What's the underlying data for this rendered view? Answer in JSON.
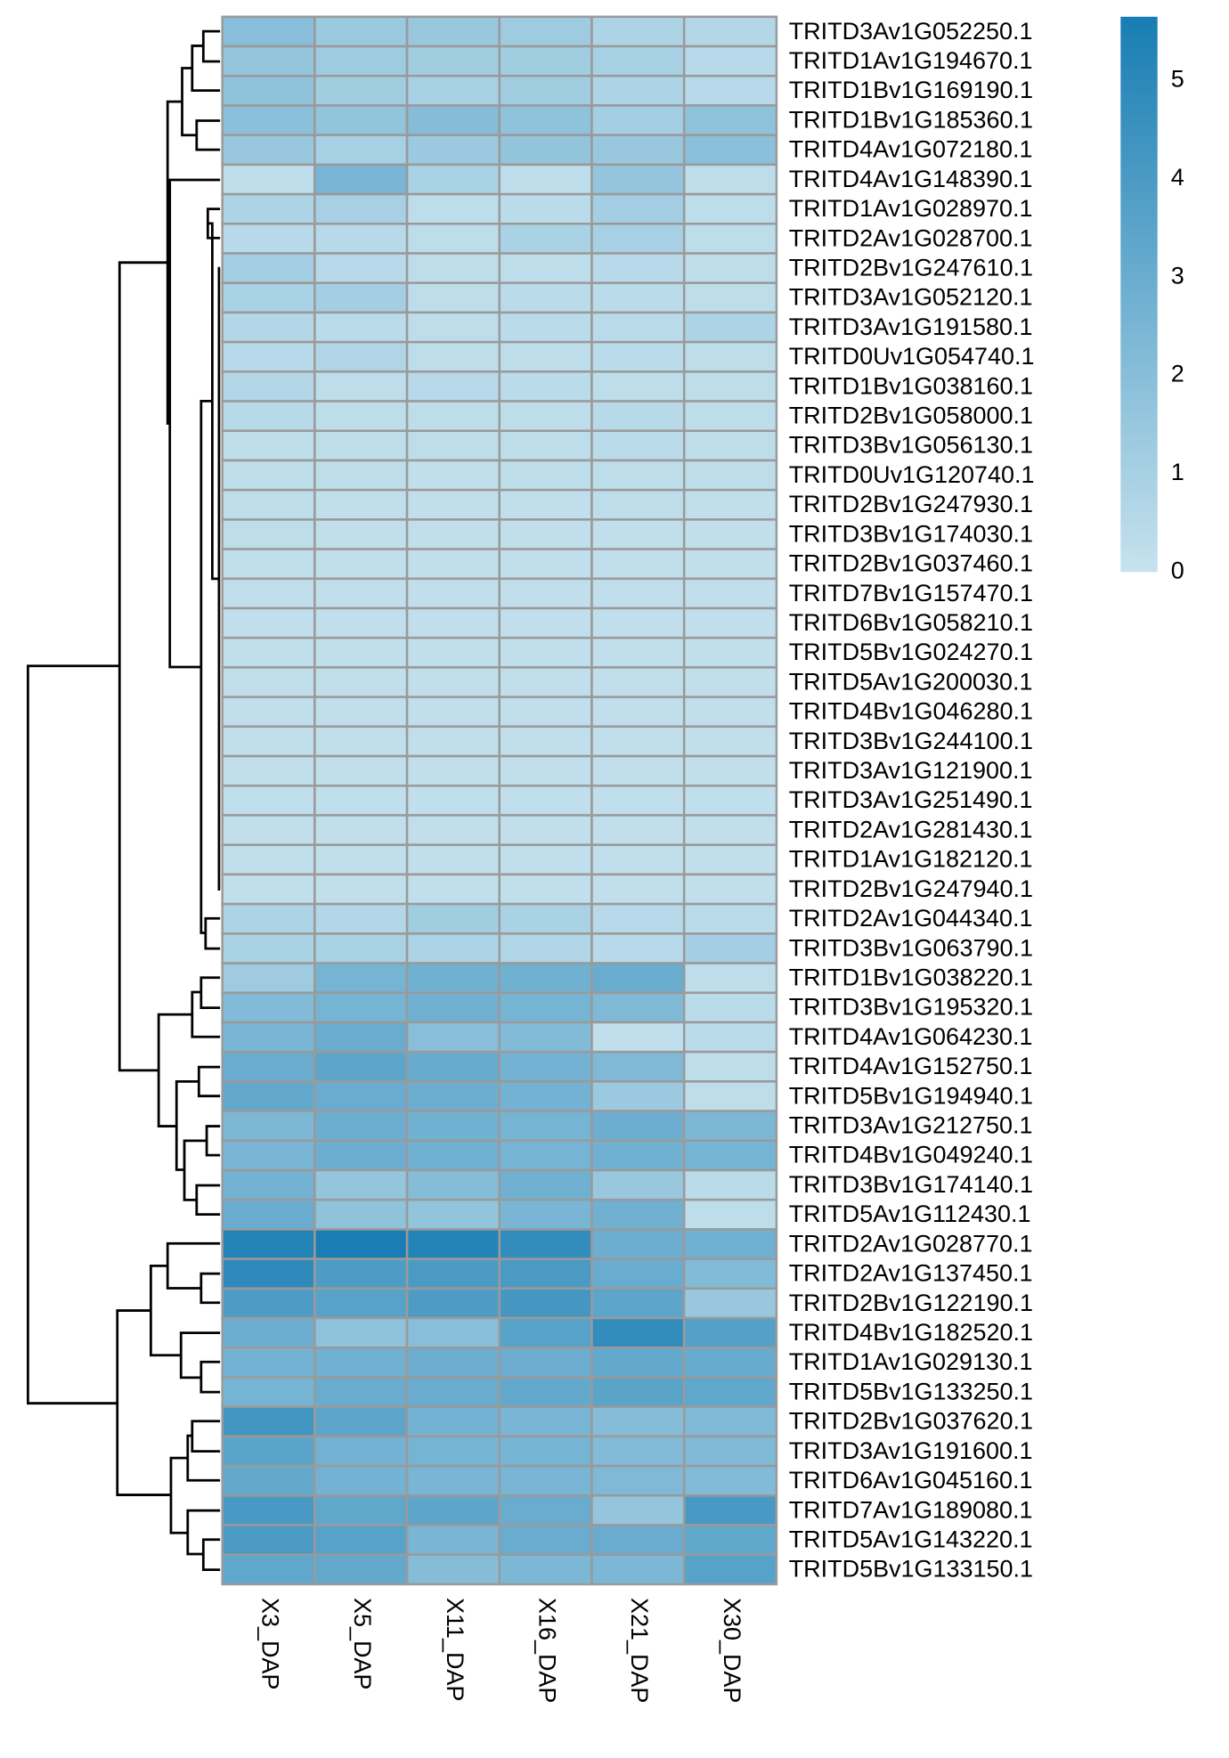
{
  "chart_data": {
    "type": "heatmap",
    "columns": [
      "X3_DAP",
      "X5_DAP",
      "X11_DAP",
      "X16_DAP",
      "X21_DAP",
      "X30_DAP"
    ],
    "rows": [
      "TRITD3Av1G052250.1",
      "TRITD1Av1G194670.1",
      "TRITD1Bv1G169190.1",
      "TRITD1Bv1G185360.1",
      "TRITD4Av1G072180.1",
      "TRITD4Av1G148390.1",
      "TRITD1Av1G028970.1",
      "TRITD2Av1G028700.1",
      "TRITD2Bv1G247610.1",
      "TRITD3Av1G052120.1",
      "TRITD3Av1G191580.1",
      "TRITD0Uv1G054740.1",
      "TRITD1Bv1G038160.1",
      "TRITD2Bv1G058000.1",
      "TRITD3Bv1G056130.1",
      "TRITD0Uv1G120740.1",
      "TRITD2Bv1G247930.1",
      "TRITD3Bv1G174030.1",
      "TRITD2Bv1G037460.1",
      "TRITD7Bv1G157470.1",
      "TRITD6Bv1G058210.1",
      "TRITD5Bv1G024270.1",
      "TRITD5Av1G200030.1",
      "TRITD4Bv1G046280.1",
      "TRITD3Bv1G244100.1",
      "TRITD3Av1G121900.1",
      "TRITD3Av1G251490.1",
      "TRITD2Av1G281430.1",
      "TRITD1Av1G182120.1",
      "TRITD2Bv1G247940.1",
      "TRITD2Av1G044340.1",
      "TRITD3Bv1G063790.1",
      "TRITD1Bv1G038220.1",
      "TRITD3Bv1G195320.1",
      "TRITD4Av1G064230.1",
      "TRITD4Av1G152750.1",
      "TRITD5Bv1G194940.1",
      "TRITD3Av1G212750.1",
      "TRITD4Bv1G049240.1",
      "TRITD3Bv1G174140.1",
      "TRITD5Av1G112430.1",
      "TRITD2Av1G028770.1",
      "TRITD2Av1G137450.1",
      "TRITD2Bv1G122190.1",
      "TRITD4Bv1G182520.1",
      "TRITD1Av1G029130.1",
      "TRITD5Bv1G133250.1",
      "TRITD2Bv1G037620.1",
      "TRITD3Av1G191600.1",
      "TRITD6Av1G045160.1",
      "TRITD7Av1G189080.1",
      "TRITD5Av1G143220.1",
      "TRITD5Bv1G133150.1"
    ],
    "values": [
      [
        2.0,
        1.4,
        1.5,
        1.3,
        0.8,
        0.6
      ],
      [
        1.6,
        1.3,
        1.2,
        1.2,
        1.0,
        0.5
      ],
      [
        1.8,
        1.2,
        1.0,
        1.2,
        0.8,
        0.5
      ],
      [
        1.9,
        1.7,
        2.1,
        1.8,
        1.1,
        1.8
      ],
      [
        1.5,
        1.0,
        1.4,
        1.7,
        1.5,
        1.9
      ],
      [
        0.3,
        2.5,
        0.9,
        0.3,
        1.6,
        0.3
      ],
      [
        0.8,
        1.0,
        0.3,
        0.4,
        1.1,
        0.3
      ],
      [
        0.5,
        0.5,
        0.3,
        0.9,
        1.0,
        0.3
      ],
      [
        1.1,
        0.5,
        0.3,
        0.3,
        0.5,
        0.3
      ],
      [
        0.9,
        1.1,
        0.3,
        0.4,
        0.4,
        0.3
      ],
      [
        0.6,
        0.4,
        0.3,
        0.4,
        0.4,
        0.8
      ],
      [
        0.5,
        0.7,
        0.3,
        0.3,
        0.4,
        0.3
      ],
      [
        0.6,
        0.3,
        0.5,
        0.4,
        0.3,
        0.3
      ],
      [
        0.5,
        0.3,
        0.3,
        0.3,
        0.5,
        0.3
      ],
      [
        0.3,
        0.3,
        0.3,
        0.3,
        0.4,
        0.3
      ],
      [
        0.3,
        0.3,
        0.2,
        0.3,
        0.3,
        0.3
      ],
      [
        0.3,
        0.2,
        0.2,
        0.2,
        0.3,
        0.2
      ],
      [
        0.3,
        0.2,
        0.2,
        0.2,
        0.2,
        0.2
      ],
      [
        0.2,
        0.2,
        0.2,
        0.2,
        0.2,
        0.2
      ],
      [
        0.2,
        0.2,
        0.2,
        0.2,
        0.2,
        0.2
      ],
      [
        0.2,
        0.2,
        0.2,
        0.2,
        0.2,
        0.2
      ],
      [
        0.2,
        0.2,
        0.2,
        0.2,
        0.2,
        0.2
      ],
      [
        0.2,
        0.2,
        0.2,
        0.2,
        0.2,
        0.2
      ],
      [
        0.2,
        0.2,
        0.2,
        0.2,
        0.2,
        0.2
      ],
      [
        0.2,
        0.2,
        0.2,
        0.2,
        0.2,
        0.2
      ],
      [
        0.2,
        0.2,
        0.2,
        0.2,
        0.2,
        0.2
      ],
      [
        0.2,
        0.2,
        0.2,
        0.2,
        0.2,
        0.2
      ],
      [
        0.2,
        0.2,
        0.2,
        0.2,
        0.2,
        0.2
      ],
      [
        0.2,
        0.2,
        0.2,
        0.2,
        0.2,
        0.2
      ],
      [
        0.2,
        0.2,
        0.2,
        0.2,
        0.2,
        0.2
      ],
      [
        0.8,
        0.6,
        1.2,
        0.9,
        0.5,
        0.4
      ],
      [
        0.9,
        0.9,
        0.8,
        0.7,
        0.5,
        1.1
      ],
      [
        1.3,
        2.6,
        2.8,
        2.8,
        3.0,
        0.3
      ],
      [
        2.2,
        2.6,
        2.8,
        2.6,
        2.3,
        0.4
      ],
      [
        2.5,
        3.0,
        2.0,
        2.2,
        0.2,
        0.4
      ],
      [
        3.0,
        3.4,
        3.1,
        2.7,
        2.3,
        0.3
      ],
      [
        3.2,
        3.0,
        2.9,
        2.7,
        1.4,
        0.3
      ],
      [
        2.4,
        2.9,
        2.8,
        2.6,
        2.9,
        2.4
      ],
      [
        2.5,
        2.9,
        2.8,
        2.6,
        2.8,
        2.6
      ],
      [
        2.7,
        1.6,
        2.1,
        2.8,
        1.5,
        0.4
      ],
      [
        3.0,
        1.8,
        1.7,
        2.5,
        2.8,
        0.3
      ],
      [
        5.3,
        5.6,
        5.3,
        4.8,
        2.9,
        2.8
      ],
      [
        4.9,
        3.9,
        4.0,
        4.0,
        3.0,
        2.2
      ],
      [
        3.9,
        3.6,
        3.9,
        4.2,
        3.4,
        1.5
      ],
      [
        2.9,
        1.8,
        2.0,
        3.6,
        4.8,
        3.7
      ],
      [
        2.7,
        2.8,
        2.9,
        2.9,
        3.2,
        3.1
      ],
      [
        2.6,
        3.0,
        3.0,
        3.2,
        3.5,
        3.3
      ],
      [
        4.3,
        3.4,
        2.7,
        2.5,
        2.1,
        2.3
      ],
      [
        3.5,
        2.7,
        2.6,
        2.6,
        2.2,
        2.3
      ],
      [
        3.2,
        2.7,
        2.5,
        2.5,
        2.3,
        2.2
      ],
      [
        4.1,
        3.3,
        3.4,
        3.0,
        1.6,
        4.1
      ],
      [
        4.0,
        3.6,
        2.5,
        3.0,
        3.0,
        3.3
      ],
      [
        3.3,
        3.2,
        2.1,
        2.4,
        2.4,
        3.6
      ]
    ],
    "color_low": "#c6e2ee",
    "color_high": "#187db3",
    "colorbar_lim": [
      0,
      5.65
    ],
    "colorbar_ticks": [
      0,
      1,
      2,
      3,
      4,
      5
    ]
  }
}
